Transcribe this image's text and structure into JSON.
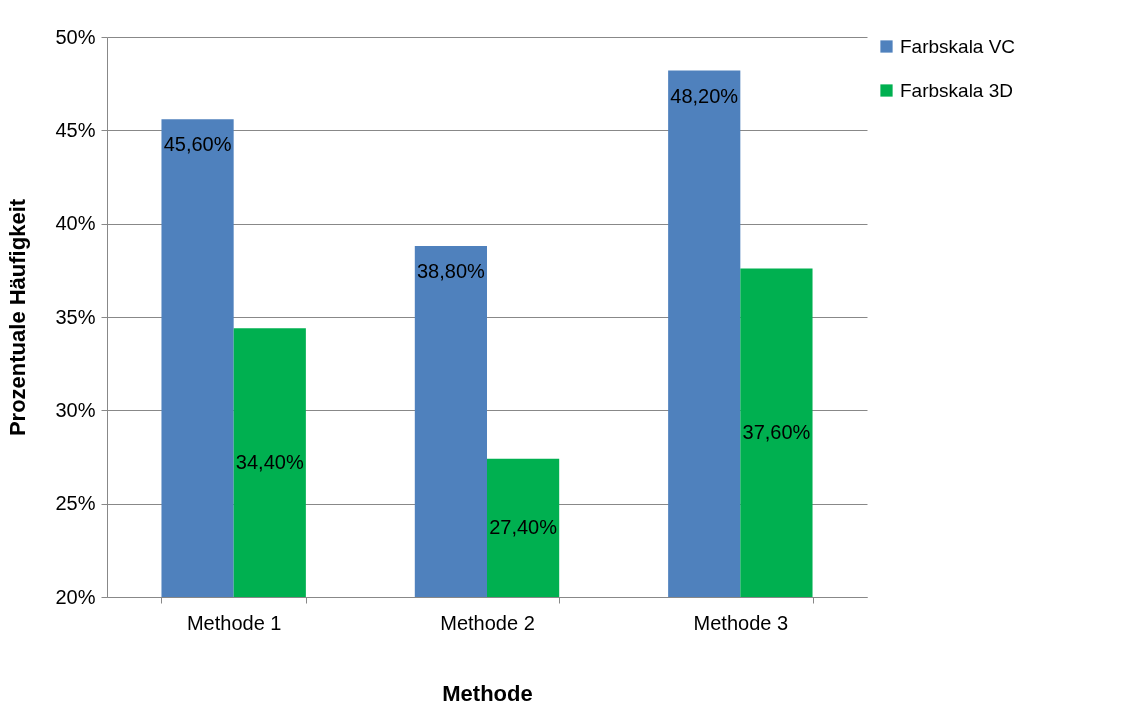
{
  "chart_data": {
    "type": "bar",
    "xlabel": "Methode",
    "ylabel": "Prozentuale Häufigkeit",
    "categories": [
      "Methode 1",
      "Methode 2",
      "Methode 3"
    ],
    "series": [
      {
        "name": "Farbskala VC",
        "color": "#4f81bd",
        "values": [
          45.6,
          38.8,
          48.2
        ],
        "value_labels": [
          "45,60%",
          "38,80%",
          "48,20%"
        ]
      },
      {
        "name": "Farbskala 3D",
        "color": "#00b050",
        "values": [
          34.4,
          27.4,
          37.6
        ],
        "value_labels": [
          "34,40%",
          "27,40%",
          "37,60%"
        ]
      }
    ],
    "ylim": [
      20,
      50
    ],
    "yticks": [
      {
        "value": 20,
        "label": "20%"
      },
      {
        "value": 25,
        "label": "25%"
      },
      {
        "value": 30,
        "label": "30%"
      },
      {
        "value": 35,
        "label": "35%"
      },
      {
        "value": 40,
        "label": "40%"
      },
      {
        "value": 45,
        "label": "45%"
      },
      {
        "value": 50,
        "label": "50%"
      }
    ],
    "grid": "y",
    "legend": "right"
  }
}
